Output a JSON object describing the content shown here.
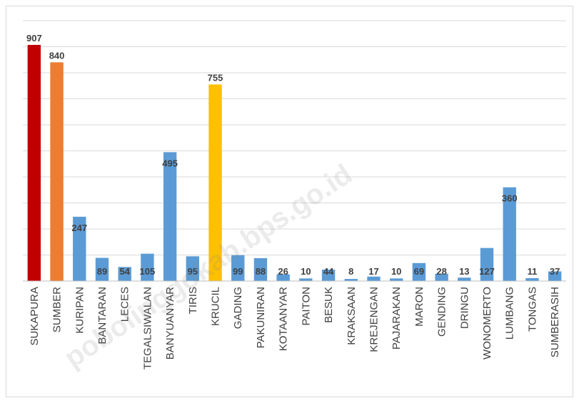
{
  "chart_data": {
    "type": "bar",
    "categories": [
      "SUKAPURA",
      "SUMBER",
      "KURIPAN",
      "BANTARAN",
      "LECES",
      "TEGALSIWALAN",
      "BANYUANYAR",
      "TIRIS",
      "KRUCIL",
      "GADING",
      "PAKUNIRAN",
      "KOTAANYAR",
      "PAITON",
      "BESUK",
      "KRAKSAAN",
      "KREJENGAN",
      "PAJARAKAN",
      "MARON",
      "GENDING",
      "DRINGU",
      "WONOMERTO",
      "LUMBANG",
      "TONGAS",
      "SUMBERASIH"
    ],
    "values": [
      907,
      840,
      247,
      89,
      54,
      105,
      495,
      95,
      755,
      99,
      88,
      26,
      10,
      44,
      8,
      17,
      10,
      69,
      28,
      13,
      127,
      360,
      11,
      37
    ],
    "colors": [
      "#c00000",
      "#ed7d31",
      "#5b9bd5",
      "#5b9bd5",
      "#5b9bd5",
      "#5b9bd5",
      "#5b9bd5",
      "#5b9bd5",
      "#ffc000",
      "#5b9bd5",
      "#5b9bd5",
      "#5b9bd5",
      "#5b9bd5",
      "#5b9bd5",
      "#5b9bd5",
      "#5b9bd5",
      "#5b9bd5",
      "#5b9bd5",
      "#5b9bd5",
      "#5b9bd5",
      "#5b9bd5",
      "#5b9bd5",
      "#5b9bd5",
      "#5b9bd5"
    ],
    "title": "",
    "xlabel": "",
    "ylabel": "",
    "ylim": [
      0,
      1000
    ],
    "grid": true,
    "legend": "none"
  },
  "watermark": "pobolinggokab.bps.go.id"
}
